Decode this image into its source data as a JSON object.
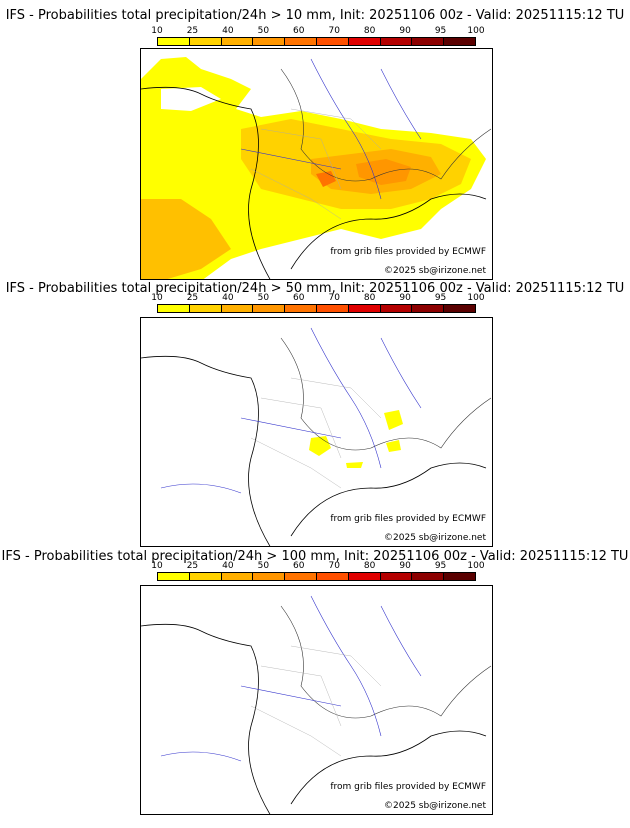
{
  "legend": {
    "ticks": [
      "10",
      "25",
      "40",
      "50",
      "60",
      "70",
      "80",
      "90",
      "95",
      "100"
    ],
    "colors": [
      "#ffff00",
      "#ffd200",
      "#ffb000",
      "#ff9600",
      "#ff7300",
      "#ff5000",
      "#e00000",
      "#b40000",
      "#8c0000",
      "#5a0000"
    ]
  },
  "panels": [
    {
      "title": "IFS - Probabilities total precipitation/24h > 10 mm, Init: 20251106 00z - Valid: 20251115:12 TU",
      "source": "from grib files provided by ECMWF",
      "copyright": "©2025 sb@irizone.net"
    },
    {
      "title": "IFS - Probabilities total precipitation/24h > 50 mm, Init: 20251106 00z - Valid: 20251115:12 TU",
      "source": "from grib files provided by ECMWF",
      "copyright": "©2025 sb@irizone.net"
    },
    {
      "title": "IFS - Probabilities total precipitation/24h > 100 mm, Init: 20251106 00z - Valid: 20251115:12 TU",
      "source": "from grib files provided by ECMWF",
      "copyright": "©2025 sb@irizone.net"
    }
  ]
}
